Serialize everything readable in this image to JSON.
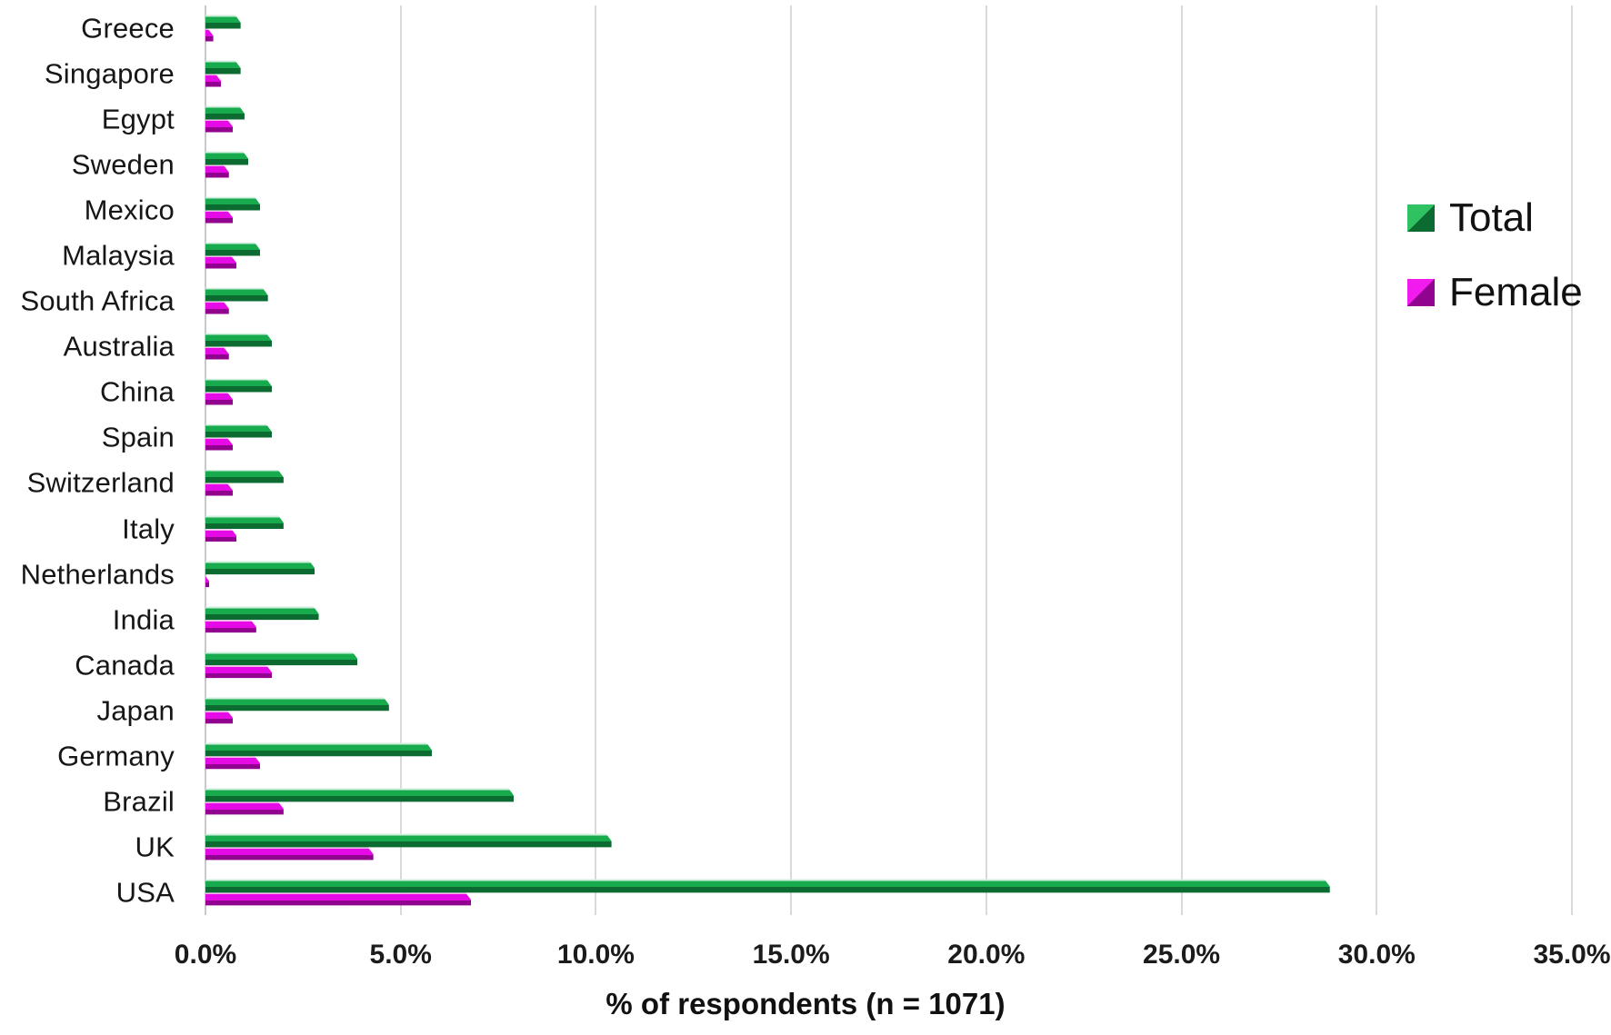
{
  "chart_data": {
    "type": "bar",
    "orientation": "horizontal",
    "title": "",
    "xlabel": "% of respondents (n = 1071)",
    "ylabel": "",
    "xlim": [
      0,
      35
    ],
    "x_tick_labels": [
      "0.0%",
      "5.0%",
      "10.0%",
      "15.0%",
      "20.0%",
      "25.0%",
      "30.0%",
      "35.0%"
    ],
    "grid": "vertical-gridlines-every-5-percent",
    "legend_position": "inside-right",
    "categories": [
      "Greece",
      "Singapore",
      "Egypt",
      "Sweden",
      "Mexico",
      "Malaysia",
      "South Africa",
      "Australia",
      "China",
      "Spain",
      "Switzerland",
      "Italy",
      "Netherlands",
      "India",
      "Canada",
      "Japan",
      "Germany",
      "Brazil",
      "UK",
      "USA"
    ],
    "series": [
      {
        "name": "Total",
        "values": [
          0.9,
          0.9,
          1.0,
          1.1,
          1.4,
          1.4,
          1.6,
          1.7,
          1.7,
          1.7,
          2.0,
          2.0,
          2.8,
          2.9,
          3.9,
          4.7,
          5.8,
          7.9,
          10.4,
          28.8
        ]
      },
      {
        "name": "Female",
        "values": [
          0.2,
          0.4,
          0.7,
          0.6,
          0.7,
          0.8,
          0.6,
          0.6,
          0.7,
          0.7,
          0.7,
          0.8,
          0.1,
          1.3,
          1.7,
          0.7,
          1.4,
          2.0,
          4.3,
          6.8
        ]
      }
    ]
  },
  "colors": {
    "total_main": "#18AB4E",
    "total_dark": "#0C6B30",
    "total_light": "#CDEEDA",
    "total_legend_bright": "#2FC263",
    "female_main": "#E60BE6",
    "female_dark": "#91038F",
    "female_light": "#F6B3F0",
    "female_legend_bright": "#F01BEC",
    "gridline": "#D9D9D9",
    "axis_line": "#C9C9C9",
    "text": "#111111"
  }
}
